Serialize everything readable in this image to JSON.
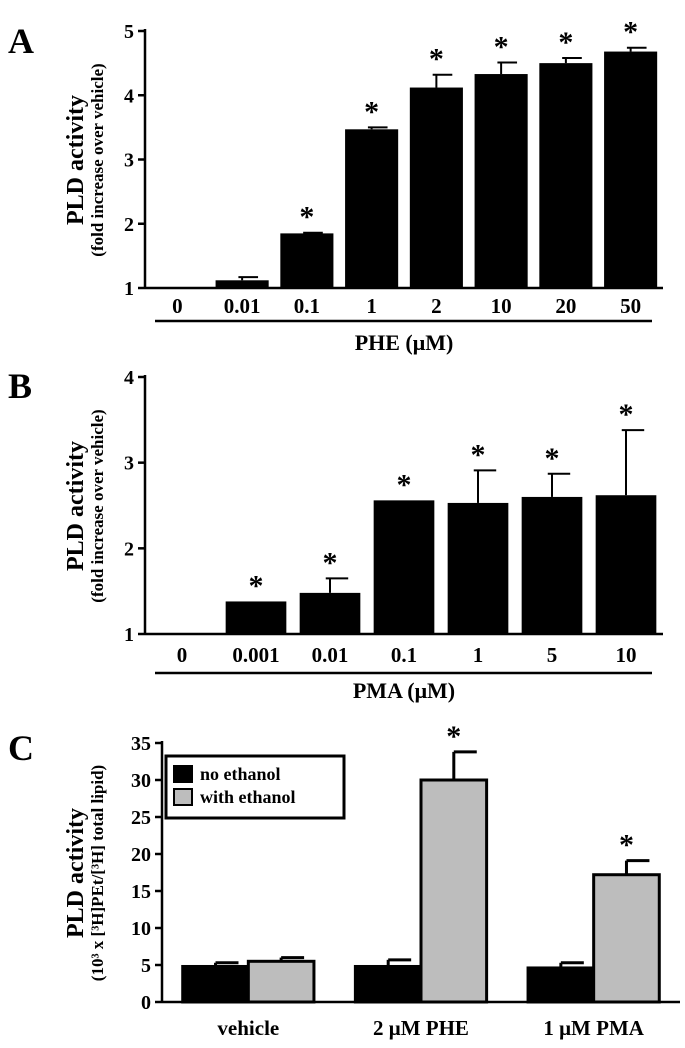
{
  "chart_data": [
    {
      "panel": "A",
      "type": "bar",
      "ylabel": "PLD activity",
      "ylabel_sub": "(fold increase over vehicle)",
      "xlabel": "PHE (μM)",
      "categories": [
        "0",
        "0.01",
        "0.1",
        "1",
        "2",
        "10",
        "20",
        "50"
      ],
      "values": [
        1.0,
        1.12,
        1.85,
        3.47,
        4.12,
        4.33,
        4.5,
        4.68
      ],
      "errors": [
        0,
        0.05,
        0.01,
        0.03,
        0.2,
        0.18,
        0.08,
        0.06
      ],
      "significant": [
        false,
        false,
        true,
        true,
        true,
        true,
        true,
        true
      ],
      "significance_marker": "*",
      "ylim": [
        1,
        5
      ],
      "yticks": [
        1,
        2,
        3,
        4,
        5
      ],
      "colors": {
        "bar": "#000000"
      }
    },
    {
      "panel": "B",
      "type": "bar",
      "ylabel": "PLD activity",
      "ylabel_sub": "(fold increase over vehicle)",
      "xlabel": "PMA (μM)",
      "categories": [
        "0",
        "0.001",
        "0.01",
        "0.1",
        "1",
        "5",
        "10"
      ],
      "values": [
        1.0,
        1.38,
        1.48,
        2.56,
        2.53,
        2.6,
        2.62
      ],
      "errors": [
        0,
        0,
        0.17,
        0,
        0.38,
        0.27,
        0.76
      ],
      "significant": [
        false,
        true,
        true,
        true,
        true,
        true,
        true
      ],
      "significance_marker": "*",
      "ylim": [
        1,
        4
      ],
      "yticks": [
        1,
        2,
        3,
        4
      ],
      "colors": {
        "bar": "#000000"
      }
    },
    {
      "panel": "C",
      "type": "bar",
      "ylabel": "PLD activity",
      "ylabel_sub": "(10³ x [³H]PEt/[³H] total lipid)",
      "xlabel": "",
      "categories": [
        "vehicle",
        "2 μM PHE",
        "1 μM PMA"
      ],
      "series": [
        {
          "name": "no ethanol",
          "values": [
            4.8,
            4.8,
            4.6
          ],
          "errors": [
            0.5,
            0.9,
            0.7
          ],
          "significant": [
            false,
            false,
            false
          ],
          "color": "#000000"
        },
        {
          "name": "with ethanol",
          "values": [
            5.5,
            30.0,
            17.2
          ],
          "errors": [
            0.5,
            3.8,
            1.9
          ],
          "significant": [
            false,
            true,
            true
          ],
          "color": "#bdbdbd"
        }
      ],
      "significance_marker": "*",
      "ylim": [
        0,
        35
      ],
      "yticks": [
        0,
        5,
        10,
        15,
        20,
        25,
        30,
        35
      ],
      "legend_position": "top-left"
    }
  ]
}
